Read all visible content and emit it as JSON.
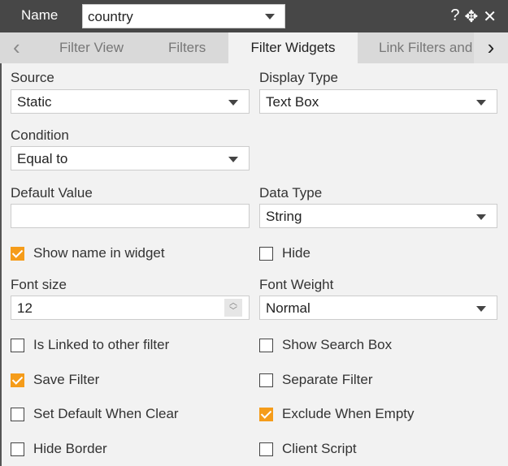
{
  "header": {
    "name_label": "Name",
    "name_value": "country",
    "icons": [
      "help-icon",
      "move-icon",
      "close-icon"
    ]
  },
  "tabs": {
    "items": [
      "Filter View",
      "Filters",
      "Filter Widgets",
      "Link Filters and"
    ],
    "active": "Filter Widgets"
  },
  "form": {
    "source_label": "Source",
    "source_value": "Static",
    "display_type_label": "Display Type",
    "display_type_value": "Text Box",
    "condition_label": "Condition",
    "condition_value": "Equal to",
    "default_value_label": "Default Value",
    "default_value": "",
    "data_type_label": "Data Type",
    "data_type_value": "String",
    "font_size_label": "Font size",
    "font_size_value": "12",
    "font_weight_label": "Font Weight",
    "font_weight_value": "Normal",
    "checkboxes": [
      {
        "label": "Show name in widget",
        "checked": true
      },
      {
        "label": "Hide",
        "checked": false
      },
      {
        "label": "Is Linked to other filter",
        "checked": false
      },
      {
        "label": "Show Search Box",
        "checked": false
      },
      {
        "label": "Save Filter",
        "checked": true
      },
      {
        "label": "Separate Filter",
        "checked": false
      },
      {
        "label": "Set Default When Clear",
        "checked": false
      },
      {
        "label": "Exclude When Empty",
        "checked": true
      },
      {
        "label": "Hide Border",
        "checked": false
      },
      {
        "label": "Client Script",
        "checked": false
      }
    ]
  },
  "colors": {
    "accent": "#f59c1a",
    "header": "#474747"
  }
}
